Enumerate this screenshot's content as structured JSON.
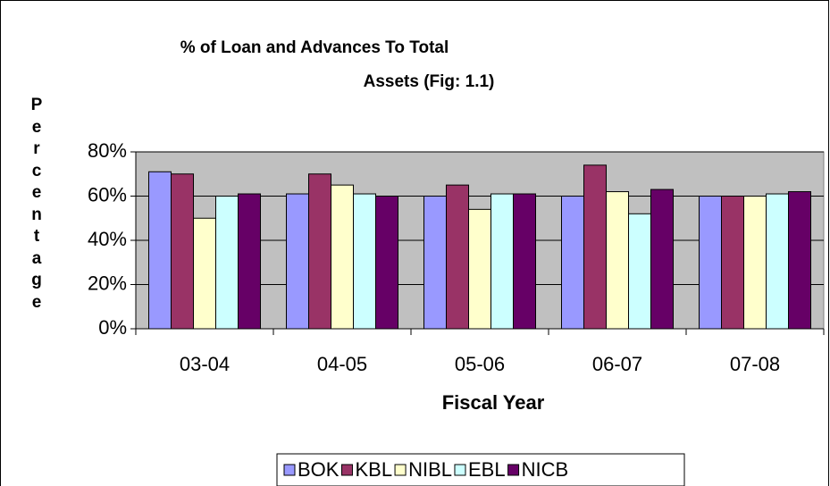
{
  "chart_data": {
    "type": "bar",
    "title": [
      "% of Loan and Advances To Total",
      "Assets (Fig: 1.1)"
    ],
    "y_label": "Percentage",
    "x_label": "Fiscal Year",
    "categories": [
      "03-04",
      "04-05",
      "05-06",
      "06-07",
      "07-08"
    ],
    "series": [
      {
        "name": "BOK",
        "color": "#9999ff",
        "values": [
          71,
          61,
          60,
          60,
          60
        ]
      },
      {
        "name": "KBL",
        "color": "#993366",
        "values": [
          70,
          70,
          65,
          74,
          60
        ]
      },
      {
        "name": "NIBL",
        "color": "#ffffcc",
        "values": [
          50,
          65,
          54,
          62,
          60
        ]
      },
      {
        "name": "EBL",
        "color": "#ccffff",
        "values": [
          60,
          61,
          61,
          52,
          61
        ]
      },
      {
        "name": "NICB",
        "color": "#660066",
        "values": [
          61,
          60,
          61,
          63,
          62
        ]
      }
    ],
    "ylim": [
      0,
      80
    ],
    "yticks": [
      {
        "value": 0,
        "label": "0%"
      },
      {
        "value": 20,
        "label": "20%"
      },
      {
        "value": 40,
        "label": "40%"
      },
      {
        "value": 60,
        "label": "60%"
      },
      {
        "value": 80,
        "label": "80%"
      }
    ],
    "grid": true,
    "plot_background": "#c0c0c0",
    "legend": "bottom"
  }
}
